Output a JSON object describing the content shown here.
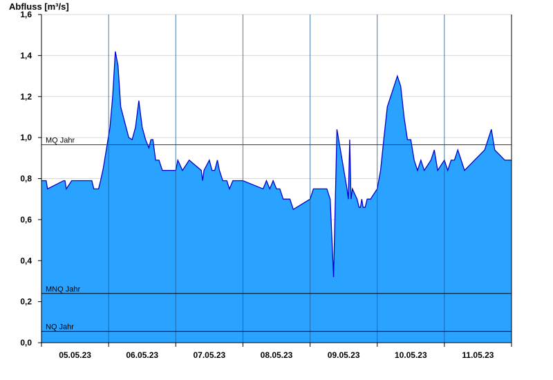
{
  "chart_data": {
    "type": "area",
    "title": "",
    "ylabel": "Abfluss [m³/s]",
    "xlabel": "",
    "ylim": [
      0,
      1.6
    ],
    "yticks": [
      "0,0",
      "0,2",
      "0,4",
      "0,6",
      "0,8",
      "1,0",
      "1,2",
      "1,4",
      "1,6"
    ],
    "ytick_values": [
      0,
      0.2,
      0.4,
      0.6,
      0.8,
      1.0,
      1.2,
      1.4,
      1.6
    ],
    "x_start": "05.05.23 00:00",
    "x_end": "12.05.23 00:00",
    "categories": [
      "05.05.23",
      "06.05.23",
      "07.05.23",
      "08.05.23",
      "09.05.23",
      "10.05.23",
      "11.05.23"
    ],
    "grid": true,
    "colors": {
      "fill": "#29a3ff",
      "line": "#0000cc",
      "mq": "#006600",
      "ref": "#000000",
      "grid": "#d9d9d9"
    },
    "series": [
      {
        "name": "",
        "x": [
          0,
          0.07,
          0.09,
          0.33,
          0.35,
          0.37,
          0.45,
          0.47,
          0.75,
          0.78,
          0.85,
          0.88,
          0.92,
          0.97,
          1.02,
          1.06,
          1.1,
          1.14,
          1.18,
          1.22,
          1.26,
          1.3,
          1.35,
          1.4,
          1.45,
          1.5,
          1.55,
          1.6,
          1.63,
          1.66,
          1.7,
          1.75,
          1.8,
          2.0,
          2.03,
          2.1,
          2.2,
          2.38,
          2.4,
          2.42,
          2.5,
          2.54,
          2.58,
          2.62,
          2.65,
          2.7,
          2.76,
          2.8,
          2.85,
          3.0,
          3.3,
          3.35,
          3.4,
          3.45,
          3.5,
          3.55,
          3.6,
          3.7,
          3.75,
          4.0,
          4.05,
          4.1,
          4.25,
          4.3,
          4.35,
          4.4,
          4.55,
          4.57,
          4.59,
          4.61,
          4.63,
          4.7,
          4.73,
          4.75,
          4.77,
          4.79,
          4.82,
          4.85,
          4.9,
          5.0,
          5.05,
          5.1,
          5.15,
          5.3,
          5.35,
          5.4,
          5.45,
          5.5,
          5.55,
          5.6,
          5.65,
          5.7,
          5.8,
          5.85,
          5.9,
          6.0,
          6.05,
          6.1,
          6.15,
          6.2,
          6.3,
          6.6,
          6.7,
          6.75,
          6.9,
          6.94,
          6.97,
          7.0
        ],
        "values": [
          0.79,
          0.79,
          0.75,
          0.79,
          0.79,
          0.75,
          0.79,
          0.79,
          0.79,
          0.75,
          0.75,
          0.79,
          0.85,
          0.95,
          1.05,
          1.2,
          1.42,
          1.35,
          1.15,
          1.1,
          1.05,
          1.0,
          0.99,
          1.05,
          1.18,
          1.05,
          0.99,
          0.95,
          0.99,
          0.99,
          0.89,
          0.89,
          0.84,
          0.84,
          0.89,
          0.84,
          0.89,
          0.84,
          0.79,
          0.84,
          0.89,
          0.84,
          0.84,
          0.89,
          0.84,
          0.79,
          0.79,
          0.75,
          0.79,
          0.79,
          0.75,
          0.79,
          0.75,
          0.79,
          0.75,
          0.75,
          0.7,
          0.7,
          0.65,
          0.7,
          0.75,
          0.75,
          0.75,
          0.7,
          0.32,
          1.04,
          0.75,
          0.7,
          0.99,
          0.7,
          0.75,
          0.7,
          0.66,
          0.66,
          0.7,
          0.66,
          0.66,
          0.7,
          0.7,
          0.75,
          0.84,
          1.0,
          1.15,
          1.3,
          1.25,
          1.1,
          0.99,
          0.99,
          0.89,
          0.84,
          0.89,
          0.84,
          0.89,
          0.94,
          0.84,
          0.89,
          0.84,
          0.89,
          0.89,
          0.94,
          0.84,
          0.94,
          1.04,
          0.94,
          0.89,
          0.89,
          0.89,
          0.89
        ]
      }
    ],
    "reference_lines": [
      {
        "label": "MQ Jahr",
        "value": 0.965
      },
      {
        "label": "MNQ Jahr",
        "value": 0.24
      },
      {
        "label": "NQ Jahr",
        "value": 0.055
      }
    ]
  }
}
